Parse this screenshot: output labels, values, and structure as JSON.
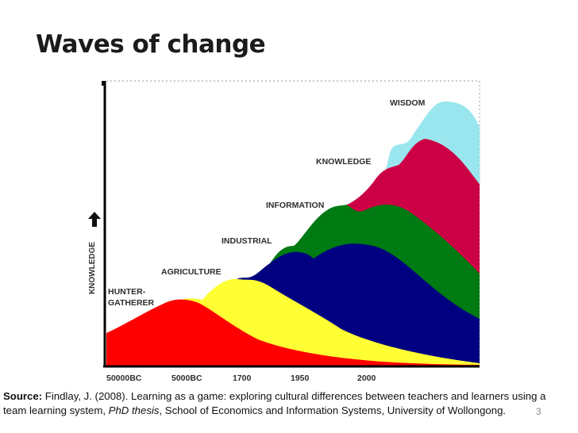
{
  "slide": {
    "title": "Waves of change",
    "page_number": "3"
  },
  "source": {
    "label": "Source:",
    "text_before": " Findlay, J. (2008). Learning as a game: exploring cultural differences between teachers and learners using a team learning system, ",
    "italic": "PhD thesis",
    "text_after": ", School of Economics and Information Systems, University of Wollongong."
  },
  "chart_data": {
    "type": "area",
    "ylabel": "KNOWLEDGE",
    "x_ticks": [
      "50000BC",
      "5000BC",
      "1700",
      "1950",
      "2000"
    ],
    "series": [
      {
        "name": "HUNTER-GATHERER",
        "color": "#ff0000"
      },
      {
        "name": "AGRICULTURE",
        "color": "#ffff33"
      },
      {
        "name": "INDUSTRIAL",
        "color": "#000080"
      },
      {
        "name": "INFORMATION",
        "color": "#007a12"
      },
      {
        "name": "KNOWLEDGE",
        "color": "#cc0044"
      },
      {
        "name": "WISDOM",
        "color": "#99e6ee"
      }
    ]
  }
}
